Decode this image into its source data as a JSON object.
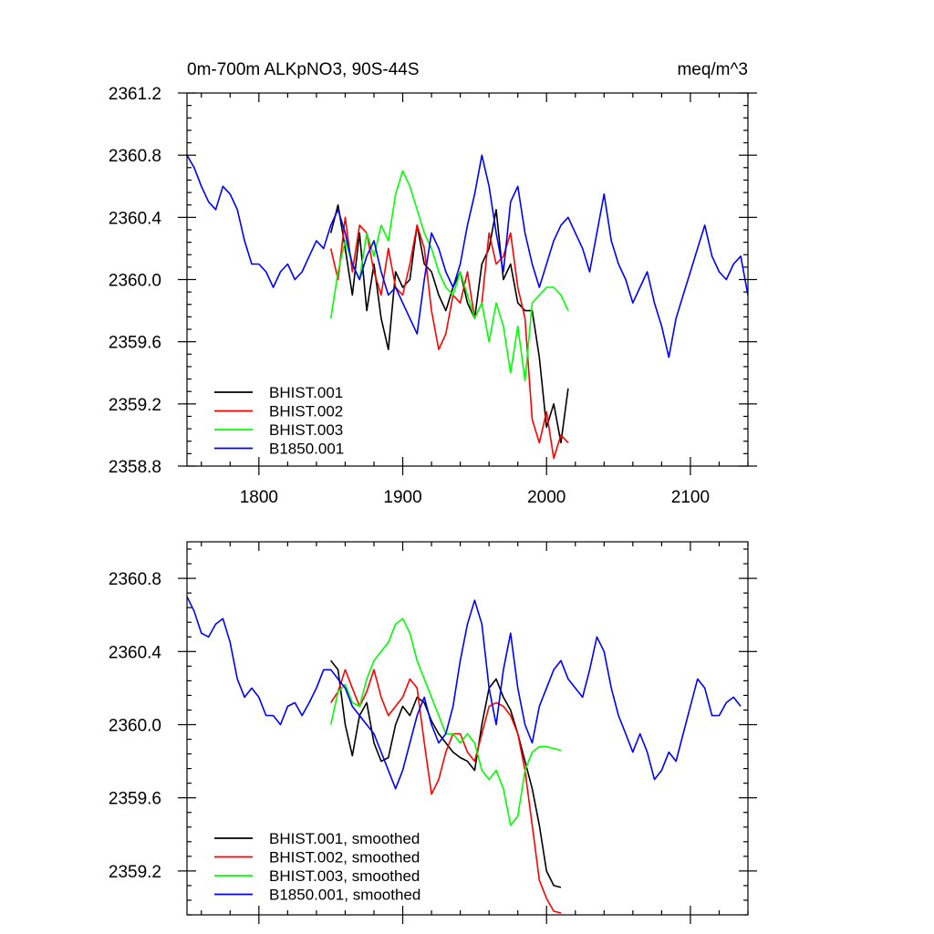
{
  "chart_data": [
    {
      "type": "line",
      "title_left": "0m-700m ALKpNO3, 90S-44S",
      "title_right": "meq/m^3",
      "xlim": [
        1750,
        2140
      ],
      "ylim": [
        2358.8,
        2361.2
      ],
      "x_ticks": [
        1800,
        1900,
        2000,
        2100
      ],
      "x_tick_labels": [
        "1800",
        "1900",
        "2000",
        "2100"
      ],
      "y_ticks": [
        2358.8,
        2359.2,
        2359.6,
        2360.0,
        2360.4,
        2360.8,
        2361.2
      ],
      "y_tick_labels": [
        "2358.8",
        "2359.2",
        "2359.6",
        "2360.0",
        "2360.4",
        "2360.8",
        "2361.2"
      ],
      "grid": false,
      "legend": "bottom-left",
      "series": [
        {
          "name": "BHIST.001",
          "color": "#000000",
          "x": [
            1850,
            1855,
            1860,
            1865,
            1870,
            1875,
            1880,
            1885,
            1890,
            1895,
            1900,
            1905,
            1910,
            1915,
            1920,
            1925,
            1930,
            1935,
            1940,
            1945,
            1950,
            1955,
            1960,
            1965,
            1970,
            1975,
            1980,
            1985,
            1990,
            1995,
            2000,
            2005,
            2010,
            2015
          ],
          "y": [
            2360.3,
            2360.48,
            2360.2,
            2359.9,
            2360.3,
            2359.8,
            2360.1,
            2359.75,
            2359.55,
            2360.05,
            2359.95,
            2360.0,
            2360.35,
            2360.1,
            2360.05,
            2359.9,
            2359.8,
            2359.95,
            2360.05,
            2359.85,
            2359.75,
            2360.1,
            2360.2,
            2360.45,
            2360.0,
            2360.1,
            2359.85,
            2359.8,
            2359.8,
            2359.5,
            2359.05,
            2359.2,
            2358.95,
            2359.3
          ]
        },
        {
          "name": "BHIST.002",
          "color": "#ff0000",
          "x": [
            1850,
            1855,
            1860,
            1865,
            1870,
            1875,
            1880,
            1885,
            1890,
            1895,
            1900,
            1905,
            1910,
            1915,
            1920,
            1925,
            1930,
            1935,
            1940,
            1945,
            1950,
            1955,
            1960,
            1965,
            1970,
            1975,
            1980,
            1985,
            1990,
            1995,
            2000,
            2005,
            2010,
            2015
          ],
          "y": [
            2360.2,
            2360.0,
            2360.4,
            2360.05,
            2360.35,
            2360.3,
            2360.05,
            2359.9,
            2360.2,
            2359.95,
            2359.9,
            2360.1,
            2360.35,
            2360.2,
            2359.8,
            2359.55,
            2359.65,
            2359.9,
            2359.85,
            2360.05,
            2359.75,
            2359.85,
            2360.3,
            2360.1,
            2360.15,
            2360.3,
            2359.95,
            2359.75,
            2359.1,
            2358.95,
            2359.15,
            2358.85,
            2359.0,
            2358.95
          ]
        },
        {
          "name": "BHIST.003",
          "color": "#00ff00",
          "x": [
            1850,
            1855,
            1860,
            1865,
            1870,
            1875,
            1880,
            1885,
            1890,
            1895,
            1900,
            1905,
            1910,
            1915,
            1920,
            1925,
            1930,
            1935,
            1940,
            1945,
            1950,
            1955,
            1960,
            1965,
            1970,
            1975,
            1980,
            1985,
            1990,
            1995,
            2000,
            2005,
            2010,
            2015
          ],
          "y": [
            2359.75,
            2360.05,
            2360.25,
            2360.1,
            2360.0,
            2360.3,
            2360.15,
            2360.35,
            2360.25,
            2360.55,
            2360.7,
            2360.6,
            2360.45,
            2360.3,
            2360.2,
            2360.05,
            2359.95,
            2359.9,
            2360.05,
            2359.9,
            2359.75,
            2359.85,
            2359.6,
            2359.85,
            2359.7,
            2359.4,
            2359.7,
            2359.35,
            2359.85,
            2359.9,
            2359.95,
            2359.95,
            2359.9,
            2359.8
          ]
        },
        {
          "name": "B1850.001",
          "color": "#0000ff",
          "x": [
            1750,
            1755,
            1760,
            1765,
            1770,
            1775,
            1780,
            1785,
            1790,
            1795,
            1800,
            1805,
            1810,
            1815,
            1820,
            1825,
            1830,
            1835,
            1840,
            1845,
            1850,
            1855,
            1860,
            1865,
            1870,
            1875,
            1880,
            1885,
            1890,
            1895,
            1900,
            1905,
            1910,
            1915,
            1920,
            1925,
            1930,
            1935,
            1940,
            1945,
            1950,
            1955,
            1960,
            1965,
            1970,
            1975,
            1980,
            1985,
            1990,
            1995,
            2000,
            2005,
            2010,
            2015,
            2020,
            2025,
            2030,
            2035,
            2040,
            2045,
            2050,
            2055,
            2060,
            2065,
            2070,
            2075,
            2080,
            2085,
            2090,
            2095,
            2100,
            2105,
            2110,
            2115,
            2120,
            2125,
            2130,
            2135,
            2140
          ],
          "y": [
            2360.8,
            2360.72,
            2360.6,
            2360.5,
            2360.45,
            2360.6,
            2360.55,
            2360.45,
            2360.25,
            2360.1,
            2360.1,
            2360.05,
            2359.95,
            2360.05,
            2360.1,
            2360.0,
            2360.05,
            2360.15,
            2360.25,
            2360.2,
            2360.35,
            2360.45,
            2360.3,
            2360.1,
            2360.0,
            2360.15,
            2360.25,
            2360.05,
            2359.9,
            2359.95,
            2359.85,
            2359.75,
            2359.65,
            2360.0,
            2360.3,
            2360.2,
            2360.05,
            2359.95,
            2360.1,
            2360.35,
            2360.55,
            2360.8,
            2360.6,
            2360.3,
            2360.05,
            2360.5,
            2360.6,
            2360.3,
            2360.1,
            2359.95,
            2360.1,
            2360.25,
            2360.35,
            2360.4,
            2360.3,
            2360.2,
            2360.05,
            2360.3,
            2360.55,
            2360.25,
            2360.1,
            2360.0,
            2359.85,
            2359.95,
            2360.05,
            2359.85,
            2359.7,
            2359.5,
            2359.75,
            2359.9,
            2360.05,
            2360.2,
            2360.35,
            2360.15,
            2360.05,
            2360.0,
            2360.1,
            2360.15,
            2359.9
          ]
        }
      ]
    },
    {
      "type": "line",
      "title_left": "",
      "title_right": "",
      "xlim": [
        1750,
        2140
      ],
      "ylim": [
        2358.96,
        2361.0
      ],
      "x_ticks": [
        1800,
        1900,
        2000,
        2100
      ],
      "x_tick_labels": [],
      "y_ticks": [
        2359.2,
        2359.6,
        2360.0,
        2360.4,
        2360.8
      ],
      "y_tick_labels": [
        "2359.2",
        "2359.6",
        "2360.0",
        "2360.4",
        "2360.8"
      ],
      "grid": false,
      "legend": "bottom-left",
      "series": [
        {
          "name": "BHIST.001, smoothed",
          "color": "#000000",
          "x": [
            1850,
            1855,
            1860,
            1865,
            1870,
            1875,
            1880,
            1885,
            1890,
            1895,
            1900,
            1905,
            1910,
            1915,
            1920,
            1925,
            1930,
            1935,
            1940,
            1945,
            1950,
            1955,
            1960,
            1965,
            1970,
            1975,
            1980,
            1985,
            1990,
            1995,
            2000,
            2005,
            2010
          ],
          "y": [
            2360.35,
            2360.3,
            2360.0,
            2359.83,
            2360.05,
            2360.12,
            2359.9,
            2359.8,
            2359.82,
            2360.0,
            2360.1,
            2360.05,
            2360.15,
            2360.12,
            2360.02,
            2359.95,
            2359.9,
            2359.85,
            2359.82,
            2359.8,
            2359.75,
            2360.0,
            2360.2,
            2360.25,
            2360.15,
            2360.08,
            2359.95,
            2359.8,
            2359.65,
            2359.45,
            2359.2,
            2359.12,
            2359.11
          ]
        },
        {
          "name": "BHIST.002, smoothed",
          "color": "#ff0000",
          "x": [
            1850,
            1855,
            1860,
            1865,
            1870,
            1875,
            1880,
            1885,
            1890,
            1895,
            1900,
            1905,
            1910,
            1915,
            1920,
            1925,
            1930,
            1935,
            1940,
            1945,
            1950,
            1955,
            1960,
            1965,
            1970,
            1975,
            1980,
            1985,
            1990,
            1995,
            2000,
            2005,
            2010
          ],
          "y": [
            2360.12,
            2360.18,
            2360.3,
            2360.2,
            2360.1,
            2360.18,
            2360.3,
            2360.15,
            2360.05,
            2360.1,
            2360.15,
            2360.25,
            2360.2,
            2359.9,
            2359.62,
            2359.7,
            2359.85,
            2359.95,
            2359.95,
            2359.85,
            2359.8,
            2359.95,
            2360.1,
            2360.12,
            2360.1,
            2360.05,
            2359.95,
            2359.75,
            2359.45,
            2359.15,
            2359.05,
            2358.98,
            2358.97
          ]
        },
        {
          "name": "BHIST.003, smoothed",
          "color": "#00ff00",
          "x": [
            1850,
            1855,
            1860,
            1865,
            1870,
            1875,
            1880,
            1885,
            1890,
            1895,
            1900,
            1905,
            1910,
            1915,
            1920,
            1925,
            1930,
            1935,
            1940,
            1945,
            1950,
            1955,
            1960,
            1965,
            1970,
            1975,
            1980,
            1985,
            1990,
            1995,
            2000,
            2005,
            2010
          ],
          "y": [
            2360.0,
            2360.18,
            2360.22,
            2360.12,
            2360.1,
            2360.25,
            2360.35,
            2360.4,
            2360.45,
            2360.55,
            2360.58,
            2360.5,
            2360.35,
            2360.25,
            2360.15,
            2360.05,
            2359.95,
            2359.95,
            2359.9,
            2359.95,
            2359.9,
            2359.75,
            2359.7,
            2359.75,
            2359.65,
            2359.45,
            2359.5,
            2359.75,
            2359.85,
            2359.88,
            2359.88,
            2359.87,
            2359.86
          ]
        },
        {
          "name": "B1850.001, smoothed",
          "color": "#0000ff",
          "x": [
            1750,
            1755,
            1760,
            1765,
            1770,
            1775,
            1780,
            1785,
            1790,
            1795,
            1800,
            1805,
            1810,
            1815,
            1820,
            1825,
            1830,
            1835,
            1840,
            1845,
            1850,
            1855,
            1860,
            1865,
            1870,
            1875,
            1880,
            1885,
            1890,
            1895,
            1900,
            1905,
            1910,
            1915,
            1920,
            1925,
            1930,
            1935,
            1940,
            1945,
            1950,
            1955,
            1960,
            1965,
            1970,
            1975,
            1980,
            1985,
            1990,
            1995,
            2000,
            2005,
            2010,
            2015,
            2020,
            2025,
            2030,
            2035,
            2040,
            2045,
            2050,
            2055,
            2060,
            2065,
            2070,
            2075,
            2080,
            2085,
            2090,
            2095,
            2100,
            2105,
            2110,
            2115,
            2120,
            2125,
            2130,
            2135
          ],
          "y": [
            2360.7,
            2360.62,
            2360.5,
            2360.48,
            2360.55,
            2360.58,
            2360.45,
            2360.25,
            2360.15,
            2360.2,
            2360.15,
            2360.05,
            2360.05,
            2360.0,
            2360.1,
            2360.12,
            2360.05,
            2360.12,
            2360.2,
            2360.3,
            2360.3,
            2360.25,
            2360.2,
            2360.1,
            2360.05,
            2360.0,
            2359.95,
            2359.85,
            2359.75,
            2359.65,
            2359.75,
            2359.9,
            2360.05,
            2360.15,
            2360.0,
            2359.9,
            2359.95,
            2360.1,
            2360.35,
            2360.55,
            2360.68,
            2360.55,
            2360.2,
            2360.0,
            2360.3,
            2360.5,
            2360.2,
            2360.0,
            2359.9,
            2360.1,
            2360.2,
            2360.3,
            2360.35,
            2360.25,
            2360.2,
            2360.15,
            2360.3,
            2360.48,
            2360.4,
            2360.2,
            2360.05,
            2359.95,
            2359.85,
            2359.95,
            2359.85,
            2359.7,
            2359.75,
            2359.85,
            2359.8,
            2359.95,
            2360.1,
            2360.25,
            2360.2,
            2360.05,
            2360.05,
            2360.12,
            2360.15,
            2360.1
          ]
        }
      ]
    }
  ]
}
